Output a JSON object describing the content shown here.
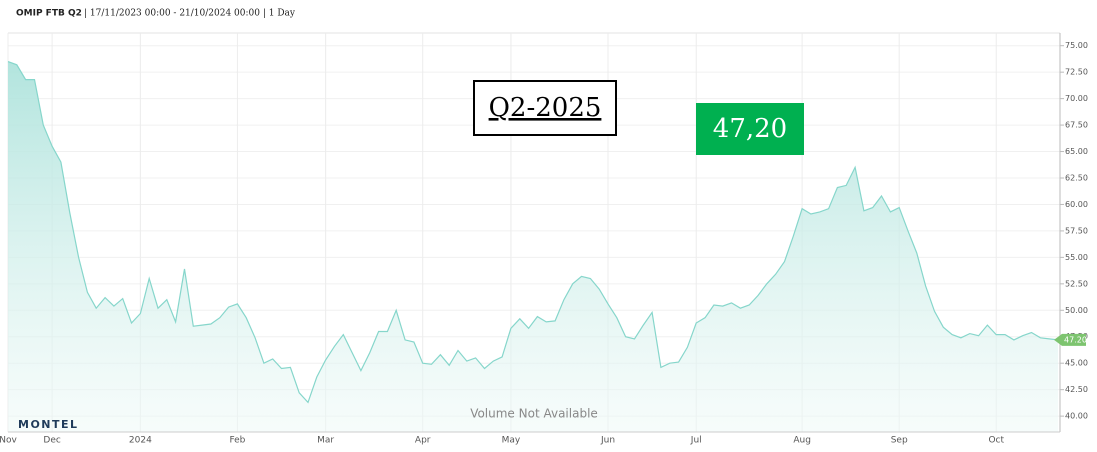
{
  "chart_data": {
    "type": "area",
    "title": "OMIP FTB Q2",
    "subtitle": "| 17/11/2023 00:00 - 21/10/2024 00:00 | 1 Day",
    "annotations": {
      "contract": "Q2-2025",
      "last_price": "47,20",
      "volume_note": "Volume Not Available",
      "logo": "MONTEL"
    },
    "color": "#86d6cb",
    "grid": true,
    "ylim": [
      38.5,
      76.2
    ],
    "yticks": [
      {
        "value": 40,
        "label": "40.00"
      },
      {
        "value": 42.5,
        "label": "42.50"
      },
      {
        "value": 45,
        "label": "45.00"
      },
      {
        "value": 47.5,
        "label": "47.50"
      },
      {
        "value": 50,
        "label": "50.00"
      },
      {
        "value": 52.5,
        "label": "52.50"
      },
      {
        "value": 55,
        "label": "55.00"
      },
      {
        "value": 57.5,
        "label": "57.50"
      },
      {
        "value": 60,
        "label": "60.00"
      },
      {
        "value": 62.5,
        "label": "62.50"
      },
      {
        "value": 65,
        "label": "65.00"
      },
      {
        "value": 67.5,
        "label": "67.50"
      },
      {
        "value": 70,
        "label": "70.00"
      },
      {
        "value": 72.5,
        "label": "72.50"
      },
      {
        "value": 75,
        "label": "75.00"
      }
    ],
    "categories": [
      "Nov",
      null,
      null,
      null,
      null,
      "Dec",
      null,
      null,
      null,
      null,
      null,
      null,
      null,
      null,
      null,
      "2024",
      null,
      null,
      null,
      null,
      null,
      null,
      null,
      null,
      null,
      null,
      "Feb",
      null,
      null,
      null,
      null,
      null,
      null,
      null,
      null,
      null,
      "Mar",
      null,
      null,
      null,
      null,
      null,
      null,
      null,
      null,
      null,
      null,
      "Apr",
      null,
      null,
      null,
      null,
      null,
      null,
      null,
      null,
      null,
      "May",
      null,
      null,
      null,
      null,
      null,
      null,
      null,
      null,
      null,
      null,
      "Jun",
      null,
      null,
      null,
      null,
      null,
      null,
      null,
      null,
      null,
      "Jul",
      null,
      null,
      null,
      null,
      null,
      null,
      null,
      null,
      null,
      null,
      null,
      "Aug",
      null,
      null,
      null,
      null,
      null,
      null,
      null,
      null,
      null,
      null,
      "Sep",
      null,
      null,
      null,
      null,
      null,
      null,
      null,
      null,
      null,
      null,
      "Oct",
      null,
      null,
      null,
      null,
      null,
      null,
      null
    ],
    "values": [
      73.5,
      73.2,
      71.8,
      71.8,
      67.5,
      65.5,
      64.0,
      59.2,
      55.0,
      51.7,
      50.2,
      51.2,
      50.4,
      51.1,
      48.8,
      49.7,
      53.0,
      50.2,
      51.0,
      48.9,
      53.9,
      48.5,
      48.6,
      48.7,
      49.3,
      50.3,
      50.6,
      49.3,
      47.4,
      45.0,
      45.4,
      44.5,
      44.6,
      42.2,
      41.3,
      43.7,
      45.3,
      46.6,
      47.7,
      46.0,
      44.3,
      46.0,
      48.0,
      48.0,
      50.0,
      47.2,
      47.0,
      45.0,
      44.9,
      45.8,
      44.8,
      46.2,
      45.2,
      45.5,
      44.5,
      45.2,
      45.6,
      48.3,
      49.2,
      48.3,
      49.4,
      48.9,
      49.0,
      51.0,
      52.5,
      53.2,
      53.0,
      52.0,
      50.6,
      49.3,
      47.5,
      47.3,
      48.6,
      49.8,
      44.6,
      45.0,
      45.1,
      46.5,
      48.8,
      49.3,
      50.5,
      50.4,
      50.7,
      50.2,
      50.5,
      51.4,
      52.5,
      53.4,
      54.6,
      57.0,
      59.6,
      59.1,
      59.3,
      59.6,
      61.6,
      61.8,
      63.5,
      59.4,
      59.7,
      60.8,
      59.3,
      59.7,
      57.5,
      55.4,
      52.3,
      49.9,
      48.4,
      47.7,
      47.4,
      47.8,
      47.6,
      48.6,
      47.7,
      47.7,
      47.2,
      47.6,
      47.9,
      47.4,
      47.3,
      47.2
    ],
    "value_labels": [
      null,
      null,
      null,
      null,
      null,
      null,
      null,
      null,
      null,
      null,
      null,
      null,
      null,
      null,
      null,
      null,
      null,
      null,
      null,
      null,
      null,
      null,
      null,
      null,
      null,
      null,
      null,
      null,
      null,
      null,
      null,
      null,
      null,
      null,
      null,
      null,
      null,
      null,
      null,
      null,
      null,
      null,
      null,
      null,
      null,
      null,
      null,
      null,
      null,
      null,
      null,
      null,
      null,
      null,
      null,
      null,
      null,
      null,
      null,
      null,
      null,
      null,
      null,
      null,
      null,
      null,
      null,
      null,
      null,
      null,
      null,
      null,
      null,
      null,
      null,
      null,
      null,
      null,
      null,
      null,
      null,
      null,
      null,
      null,
      null,
      null,
      null,
      null,
      null,
      null,
      null,
      null,
      null,
      null,
      null,
      null,
      null,
      null,
      null,
      null,
      null,
      null,
      null,
      null,
      null,
      null,
      null,
      null,
      null,
      null,
      null,
      null,
      null,
      null,
      null,
      null,
      null,
      null,
      null,
      "47.20"
    ]
  }
}
